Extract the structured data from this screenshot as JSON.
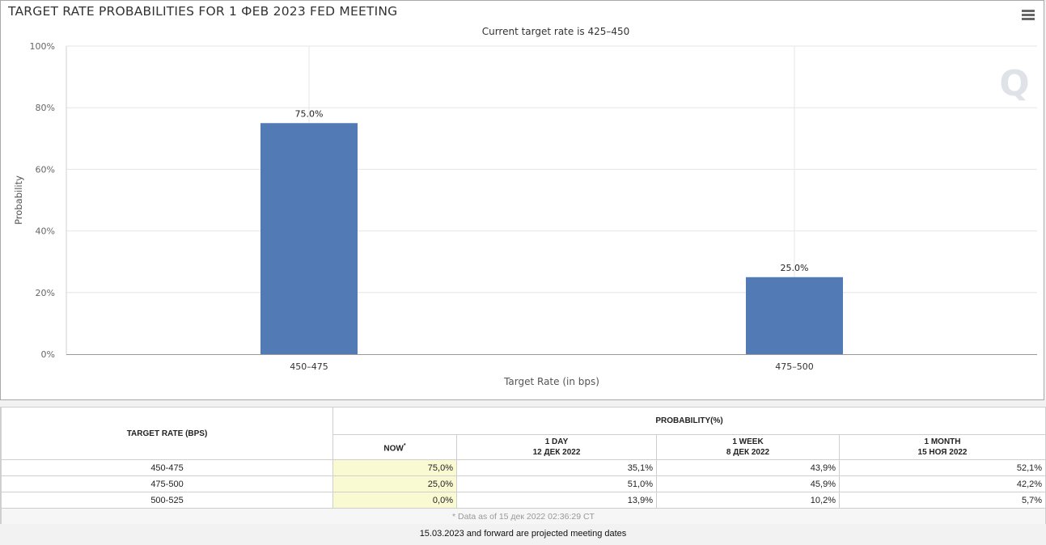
{
  "chart": {
    "title": "TARGET RATE PROBABILITIES FOR 1 ФЕВ 2023 FED MEETING",
    "subtitle": "Current target rate is 425–450",
    "watermark": "Q"
  },
  "chart_data": {
    "type": "bar",
    "categories": [
      "450–475",
      "475–500"
    ],
    "values": [
      75.0,
      25.0
    ],
    "data_labels": [
      "75.0%",
      "25.0%"
    ],
    "xlabel": "Target Rate (in bps)",
    "ylabel": "Probability",
    "ylim": [
      0,
      100
    ],
    "yticks": [
      "0%",
      "20%",
      "40%",
      "60%",
      "80%",
      "100%"
    ],
    "grid": true,
    "bar_color": "#527ab4"
  },
  "table": {
    "header_rate": "TARGET RATE (BPS)",
    "header_prob": "PROBABILITY(%)",
    "columns": [
      {
        "label": "NOW",
        "sup": "*",
        "date": ""
      },
      {
        "label": "1 DAY",
        "date": "12 ДЕК 2022"
      },
      {
        "label": "1 WEEK",
        "date": "8 ДЕК 2022"
      },
      {
        "label": "1 MONTH",
        "date": "15 НОЯ 2022"
      }
    ],
    "rows": [
      {
        "rate": "450-475",
        "values": [
          "75,0%",
          "35,1%",
          "43,9%",
          "52,1%"
        ]
      },
      {
        "rate": "475-500",
        "values": [
          "25,0%",
          "51,0%",
          "45,9%",
          "42,2%"
        ]
      },
      {
        "rate": "500-525",
        "values": [
          "0,0%",
          "13,9%",
          "10,2%",
          "5,7%"
        ]
      }
    ],
    "note": "* Data as of 15 дек 2022 02:36:29 CT"
  },
  "footer": "15.03.2023 and forward are projected meeting dates"
}
